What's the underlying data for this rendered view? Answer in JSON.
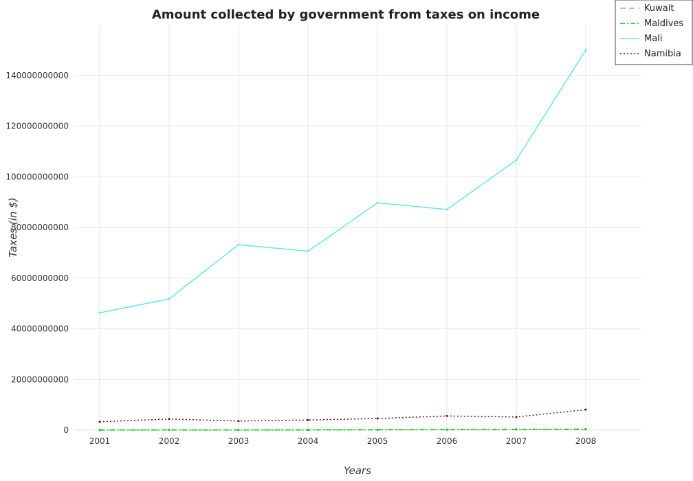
{
  "chart_data": {
    "type": "line",
    "title": "Amount collected by government from taxes on income",
    "xlabel": "Years",
    "ylabel": "Taxes (in $)",
    "x": [
      "2001",
      "2002",
      "2003",
      "2004",
      "2005",
      "2006",
      "2007",
      "2008"
    ],
    "ylim": [
      0,
      160000000000
    ],
    "yticks": [
      0,
      20000000000,
      40000000000,
      60000000000,
      80000000000,
      100000000000,
      120000000000,
      140000000000
    ],
    "ytick_labels": [
      "0",
      "20000000000",
      "40000000000",
      "60000000000",
      "80000000000",
      "100000000000",
      "120000000000",
      "140000000000"
    ],
    "grid": true,
    "legend_position": "top-right",
    "series": [
      {
        "name": "Kuwait",
        "color": "#aaaaaa",
        "dash": "8,5",
        "values": [
          110000000,
          120000000,
          100000000,
          110000000,
          150000000,
          170000000,
          190000000,
          200000000
        ]
      },
      {
        "name": "Maldives",
        "color": "#00cc00",
        "dash": "7,3,2,3",
        "values": [
          50000000,
          60000000,
          60000000,
          80000000,
          150000000,
          200000000,
          350000000,
          400000000
        ]
      },
      {
        "name": "Mali",
        "color": "#66e6e6",
        "dash": "",
        "values": [
          46300000000,
          51800000000,
          73200000000,
          70600000000,
          89700000000,
          87100000000,
          106600000000,
          150000000000
        ]
      },
      {
        "name": "Namibia",
        "color": "#661111",
        "dash": "2,3",
        "values": [
          3300000000,
          4400000000,
          3600000000,
          4000000000,
          4600000000,
          5600000000,
          5200000000,
          8100000000
        ]
      }
    ]
  }
}
